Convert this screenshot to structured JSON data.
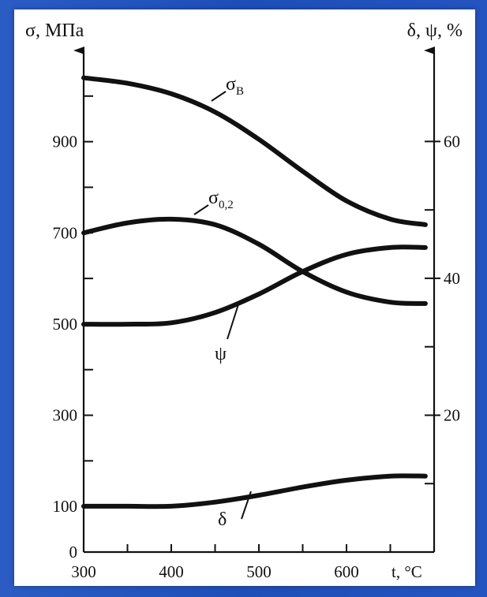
{
  "chart_data": {
    "type": "line",
    "title": "",
    "xlabel": "t, °C",
    "ylabel_left": "σ, МПа",
    "ylabel_right": "δ, ψ, %",
    "xlim": [
      300,
      700
    ],
    "x_ticks": [
      300,
      400,
      500,
      600
    ],
    "ylim_left": [
      0,
      1100
    ],
    "y_ticks_left": [
      0,
      100,
      300,
      500,
      700,
      900
    ],
    "ylim_right": [
      0,
      73.3
    ],
    "y_ticks_right": [
      20,
      40,
      60
    ],
    "grid": false,
    "series": [
      {
        "name": "σВ",
        "axis": "left",
        "label_main": "σ",
        "label_sub": "В",
        "x": [
          300,
          350,
          400,
          450,
          500,
          550,
          600,
          650,
          690
        ],
        "values": [
          1040,
          1028,
          1005,
          965,
          905,
          835,
          770,
          730,
          718
        ]
      },
      {
        "name": "σ0,2",
        "axis": "left",
        "label_main": "σ",
        "label_sub": "0,2",
        "x": [
          300,
          350,
          400,
          450,
          500,
          550,
          600,
          650,
          690
        ],
        "values": [
          700,
          722,
          730,
          718,
          675,
          615,
          570,
          548,
          545
        ]
      },
      {
        "name": "ψ",
        "axis": "right",
        "label_main": "ψ",
        "label_sub": "",
        "x": [
          300,
          350,
          400,
          450,
          500,
          550,
          600,
          650,
          690
        ],
        "values": [
          33.3,
          33.3,
          33.5,
          35.0,
          37.7,
          41.0,
          43.5,
          44.5,
          44.5
        ]
      },
      {
        "name": "δ",
        "axis": "right",
        "label_main": "δ",
        "label_sub": "",
        "x": [
          300,
          350,
          400,
          450,
          500,
          550,
          600,
          650,
          690
        ],
        "values": [
          6.7,
          6.7,
          6.7,
          7.3,
          8.3,
          9.5,
          10.5,
          11.1,
          11.1
        ]
      }
    ]
  }
}
